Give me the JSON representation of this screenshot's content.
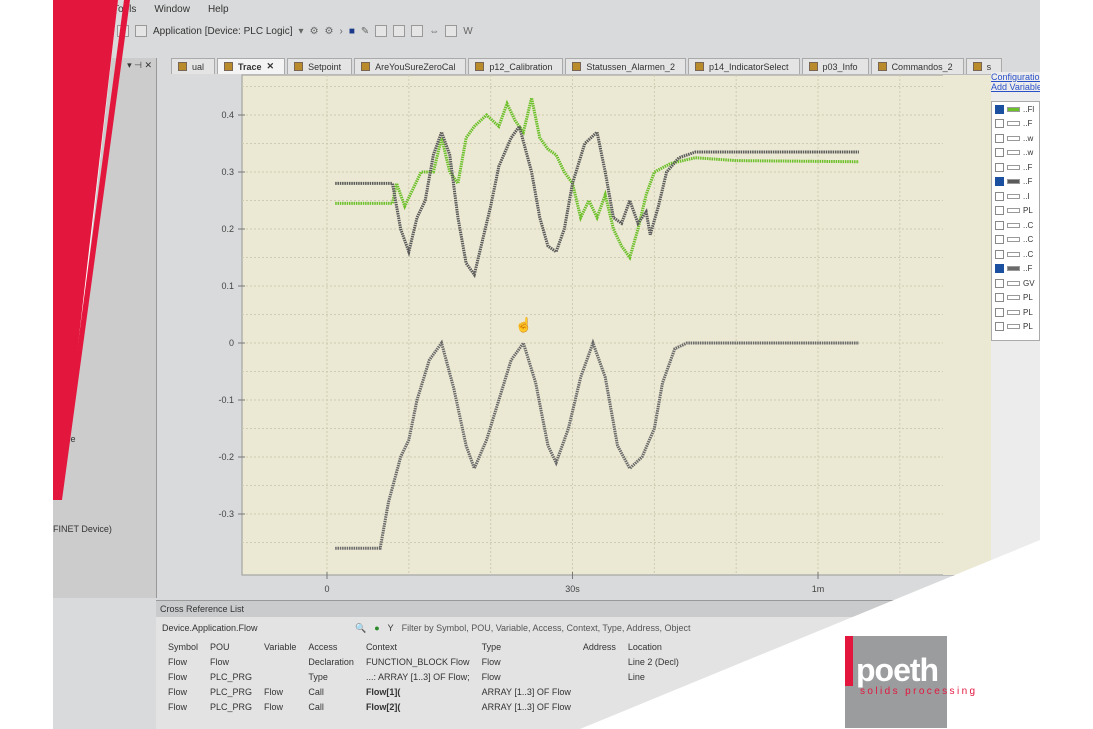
{
  "menu": [
    "Tools",
    "Window",
    "Help"
  ],
  "toolbar": {
    "application_selector": "Application [Device: PLC Logic]"
  },
  "left_panel": {
    "item1": "Cycle",
    "item2": "FINET Device)"
  },
  "tabs": [
    {
      "label": "ual",
      "active": false
    },
    {
      "label": "Trace",
      "active": true
    },
    {
      "label": "Setpoint"
    },
    {
      "label": "AreYouSureZeroCal"
    },
    {
      "label": "p12_Calibration"
    },
    {
      "label": "Statussen_Alarmen_2"
    },
    {
      "label": "p14_IndicatorSelect"
    },
    {
      "label": "p03_Info"
    },
    {
      "label": "Commandos_2"
    },
    {
      "label": "s"
    }
  ],
  "variables_panel": {
    "configuration_link": "Configuration",
    "add_variable_link": "Add Variable",
    "items": [
      {
        "label": "..Fl",
        "checked": true,
        "color": "#6cc02a"
      },
      {
        "label": "..F",
        "checked": false
      },
      {
        "label": "..w",
        "checked": false
      },
      {
        "label": "..w",
        "checked": false
      },
      {
        "label": "..F",
        "checked": false
      },
      {
        "label": "..F",
        "checked": true,
        "color": "#5a5a5a"
      },
      {
        "label": "..I",
        "checked": false
      },
      {
        "label": "PL",
        "checked": false
      },
      {
        "label": "..C",
        "checked": false
      },
      {
        "label": "..C",
        "checked": false
      },
      {
        "label": "..C",
        "checked": false
      },
      {
        "label": "..F",
        "checked": true,
        "color": "#6a6a6a"
      },
      {
        "label": "GV",
        "checked": false
      },
      {
        "label": "PL",
        "checked": false
      },
      {
        "label": "PL",
        "checked": false
      },
      {
        "label": "PL",
        "checked": false
      }
    ]
  },
  "chart_data": {
    "type": "line",
    "xlabel": "",
    "ylabel": "",
    "xlim": [
      0,
      65
    ],
    "ylim": [
      -0.38,
      0.46
    ],
    "x_ticks": [
      {
        "value": 0,
        "label": "0"
      },
      {
        "value": 30,
        "label": "30s"
      },
      {
        "value": 60,
        "label": "1m"
      }
    ],
    "y_ticks": [
      {
        "value": 0.4,
        "label": "0.4"
      },
      {
        "value": 0.3,
        "label": "0.3"
      },
      {
        "value": 0.2,
        "label": "0.2"
      },
      {
        "value": 0.1,
        "label": "0.1"
      },
      {
        "value": 0,
        "label": "0"
      },
      {
        "value": -0.1,
        "label": "-0.1"
      },
      {
        "value": -0.2,
        "label": "-0.2"
      },
      {
        "value": -0.3,
        "label": "-0.3"
      }
    ],
    "grid": true,
    "series": [
      {
        "color": "#6cc02a",
        "points": [
          [
            1,
            0.245
          ],
          [
            8,
            0.245
          ],
          [
            8.5,
            0.28
          ],
          [
            9.5,
            0.24
          ],
          [
            10.5,
            0.27
          ],
          [
            11.5,
            0.3
          ],
          [
            13,
            0.3
          ],
          [
            14,
            0.36
          ],
          [
            15,
            0.3
          ],
          [
            16,
            0.28
          ],
          [
            17,
            0.36
          ],
          [
            18,
            0.38
          ],
          [
            19.5,
            0.4
          ],
          [
            21,
            0.38
          ],
          [
            22,
            0.42
          ],
          [
            23,
            0.39
          ],
          [
            24,
            0.37
          ],
          [
            25,
            0.43
          ],
          [
            26,
            0.36
          ],
          [
            27,
            0.34
          ],
          [
            28,
            0.33
          ],
          [
            29,
            0.3
          ],
          [
            30,
            0.28
          ],
          [
            31,
            0.22
          ],
          [
            32,
            0.25
          ],
          [
            33,
            0.22
          ],
          [
            34,
            0.26
          ],
          [
            35,
            0.2
          ],
          [
            36,
            0.17
          ],
          [
            37,
            0.15
          ],
          [
            38,
            0.2
          ],
          [
            39,
            0.26
          ],
          [
            40,
            0.3
          ],
          [
            42,
            0.315
          ],
          [
            45,
            0.325
          ],
          [
            50,
            0.32
          ],
          [
            65,
            0.318
          ]
        ]
      },
      {
        "color": "#5a5a5a",
        "points": [
          [
            1,
            0.28
          ],
          [
            8,
            0.28
          ],
          [
            9,
            0.2
          ],
          [
            10,
            0.16
          ],
          [
            11,
            0.22
          ],
          [
            12,
            0.25
          ],
          [
            13,
            0.33
          ],
          [
            14,
            0.37
          ],
          [
            15,
            0.33
          ],
          [
            16,
            0.22
          ],
          [
            17,
            0.14
          ],
          [
            18,
            0.12
          ],
          [
            19,
            0.18
          ],
          [
            20,
            0.24
          ],
          [
            21,
            0.31
          ],
          [
            22.5,
            0.36
          ],
          [
            23.5,
            0.38
          ],
          [
            25,
            0.3
          ],
          [
            26,
            0.22
          ],
          [
            27,
            0.17
          ],
          [
            28,
            0.16
          ],
          [
            29,
            0.2
          ],
          [
            30,
            0.28
          ],
          [
            31.5,
            0.35
          ],
          [
            33,
            0.37
          ],
          [
            34,
            0.3
          ],
          [
            35,
            0.22
          ],
          [
            36,
            0.21
          ],
          [
            37,
            0.25
          ],
          [
            38,
            0.21
          ],
          [
            39,
            0.23
          ],
          [
            39.5,
            0.19
          ],
          [
            40.5,
            0.24
          ],
          [
            41.5,
            0.3
          ],
          [
            43,
            0.325
          ],
          [
            45,
            0.335
          ],
          [
            65,
            0.335
          ]
        ]
      },
      {
        "color": "#6a6a6a",
        "points": [
          [
            1,
            -0.36
          ],
          [
            6.5,
            -0.36
          ],
          [
            7.5,
            -0.28
          ],
          [
            9,
            -0.2
          ],
          [
            10,
            -0.17
          ],
          [
            11,
            -0.1
          ],
          [
            12.5,
            -0.03
          ],
          [
            14,
            0
          ],
          [
            15.5,
            -0.08
          ],
          [
            17,
            -0.18
          ],
          [
            18,
            -0.22
          ],
          [
            19.5,
            -0.17
          ],
          [
            21,
            -0.1
          ],
          [
            22.5,
            -0.03
          ],
          [
            24,
            0
          ],
          [
            25.5,
            -0.07
          ],
          [
            27,
            -0.18
          ],
          [
            28,
            -0.21
          ],
          [
            29.5,
            -0.15
          ],
          [
            31,
            -0.06
          ],
          [
            32.5,
            0
          ],
          [
            34,
            -0.06
          ],
          [
            35.5,
            -0.18
          ],
          [
            37,
            -0.22
          ],
          [
            38.5,
            -0.2
          ],
          [
            40,
            -0.15
          ],
          [
            41,
            -0.07
          ],
          [
            42.5,
            -0.01
          ],
          [
            44,
            0
          ],
          [
            65,
            0
          ]
        ]
      }
    ]
  },
  "cross_reference": {
    "title": "Cross Reference List",
    "search_value": "Device.Application.Flow",
    "filter_placeholder": "Filter by Symbol, POU, Variable, Access, Context, Type, Address, Object",
    "columns": [
      "Symbol",
      "POU",
      "Variable",
      "Access",
      "Context",
      "Type",
      "Address",
      "Location"
    ],
    "rows": [
      [
        "Flow",
        "Flow",
        "",
        "Declaration",
        "FUNCTION_BLOCK Flow",
        "Flow",
        "",
        "Line 2 (Decl)"
      ],
      [
        "Flow",
        "PLC_PRG",
        "",
        "Type",
        "...: ARRAY [1..3] OF Flow;",
        "Flow",
        "",
        "Line"
      ],
      [
        "Flow",
        "PLC_PRG",
        "Flow",
        "Call",
        "Flow[1](",
        "ARRAY [1..3] OF Flow",
        "",
        ""
      ],
      [
        "Flow",
        "PLC_PRG",
        "Flow",
        "Call",
        "Flow[2](",
        "ARRAY [1..3] OF Flow",
        "",
        ""
      ]
    ]
  },
  "logo": {
    "name": "poeth",
    "tagline": "solids processing",
    "accent": "#e3173e"
  }
}
